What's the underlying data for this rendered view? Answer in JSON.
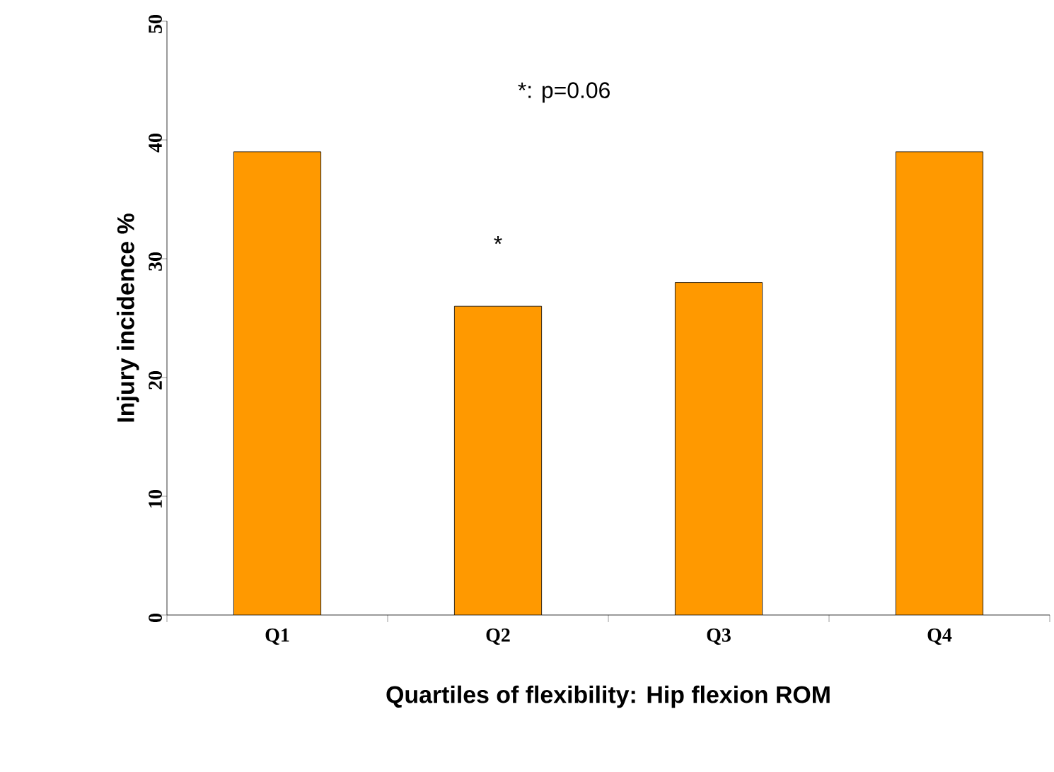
{
  "chart_data": {
    "type": "bar",
    "xlabel": "Quartiles of flexibility: Hip flexion ROM",
    "ylabel": "Injury incidence %",
    "categories": [
      "Q1",
      "Q2",
      "Q3",
      "Q4"
    ],
    "values": [
      39,
      26,
      28,
      39
    ],
    "color": "#ff9900",
    "ylim": [
      0,
      50
    ],
    "yticks": [
      0,
      10,
      20,
      30,
      40,
      50
    ],
    "grid": false,
    "annotations": [
      "*: p=0.06",
      "*"
    ]
  }
}
